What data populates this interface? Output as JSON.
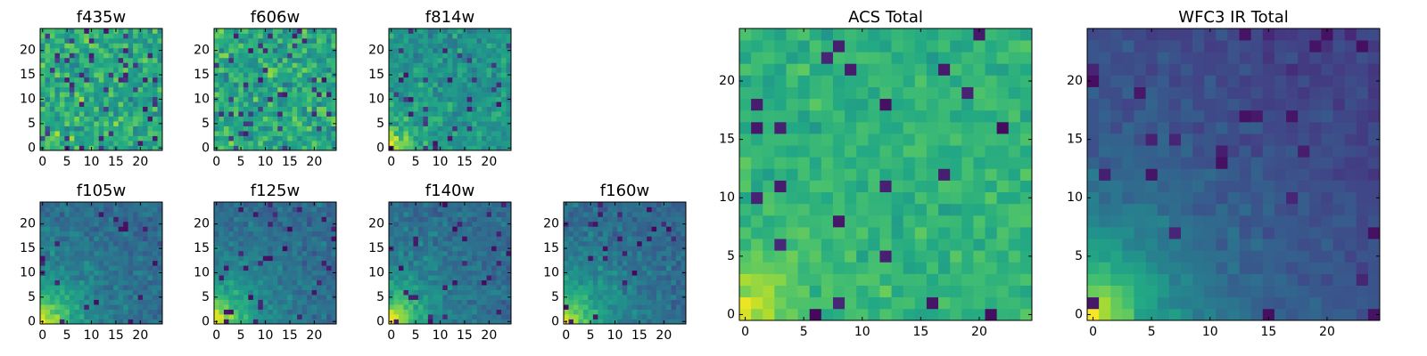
{
  "chart_data": [
    {
      "type": "heatmap",
      "title": "f435w",
      "grid_size": 25,
      "colormap": "viridis",
      "pattern": "noisy",
      "seed": 11,
      "x_ticks": [
        "0",
        "5",
        "10",
        "15",
        "20"
      ],
      "y_ticks": [
        "0",
        "5",
        "10",
        "15",
        "20"
      ]
    },
    {
      "type": "heatmap",
      "title": "f606w",
      "grid_size": 25,
      "colormap": "viridis",
      "pattern": "noisy",
      "seed": 23,
      "x_ticks": [
        "0",
        "5",
        "10",
        "15",
        "20"
      ],
      "y_ticks": [
        "0",
        "5",
        "10",
        "15",
        "20"
      ]
    },
    {
      "type": "heatmap",
      "title": "f814w",
      "grid_size": 25,
      "colormap": "viridis",
      "pattern": "noisy_corner",
      "seed": 37,
      "x_ticks": [
        "0",
        "5",
        "10",
        "15",
        "20"
      ],
      "y_ticks": [
        "0",
        "5",
        "10",
        "15",
        "20"
      ]
    },
    {
      "type": "heatmap",
      "title": "f105w",
      "grid_size": 25,
      "colormap": "viridis",
      "pattern": "corner_gradient",
      "seed": 41,
      "x_ticks": [
        "0",
        "5",
        "10",
        "15",
        "20"
      ],
      "y_ticks": [
        "0",
        "5",
        "10",
        "15",
        "20"
      ]
    },
    {
      "type": "heatmap",
      "title": "f125w",
      "grid_size": 25,
      "colormap": "viridis",
      "pattern": "corner_gradient",
      "seed": 53,
      "x_ticks": [
        "0",
        "5",
        "10",
        "15",
        "20"
      ],
      "y_ticks": [
        "0",
        "5",
        "10",
        "15",
        "20"
      ]
    },
    {
      "type": "heatmap",
      "title": "f140w",
      "grid_size": 25,
      "colormap": "viridis",
      "pattern": "corner_gradient",
      "seed": 67,
      "x_ticks": [
        "0",
        "5",
        "10",
        "15",
        "20"
      ],
      "y_ticks": [
        "0",
        "5",
        "10",
        "15",
        "20"
      ]
    },
    {
      "type": "heatmap",
      "title": "f160w",
      "grid_size": 25,
      "colormap": "viridis",
      "pattern": "corner_gradient",
      "seed": 79,
      "x_ticks": [
        "0",
        "5",
        "10",
        "15",
        "20"
      ],
      "y_ticks": [
        "0",
        "5",
        "10",
        "15",
        "20"
      ]
    },
    {
      "type": "heatmap",
      "title": "ACS Total",
      "grid_size": 25,
      "colormap": "viridis",
      "pattern": "acs_total",
      "seed": 97,
      "x_ticks": [
        "0",
        "5",
        "10",
        "15",
        "20"
      ],
      "y_ticks": [
        "0",
        "5",
        "10",
        "15",
        "20"
      ]
    },
    {
      "type": "heatmap",
      "title": "WFC3 IR Total",
      "grid_size": 25,
      "colormap": "viridis",
      "pattern": "ir_total",
      "seed": 113,
      "x_ticks": [
        "0",
        "5",
        "10",
        "15",
        "20"
      ],
      "y_ticks": [
        "0",
        "5",
        "10",
        "15",
        "20"
      ]
    }
  ]
}
